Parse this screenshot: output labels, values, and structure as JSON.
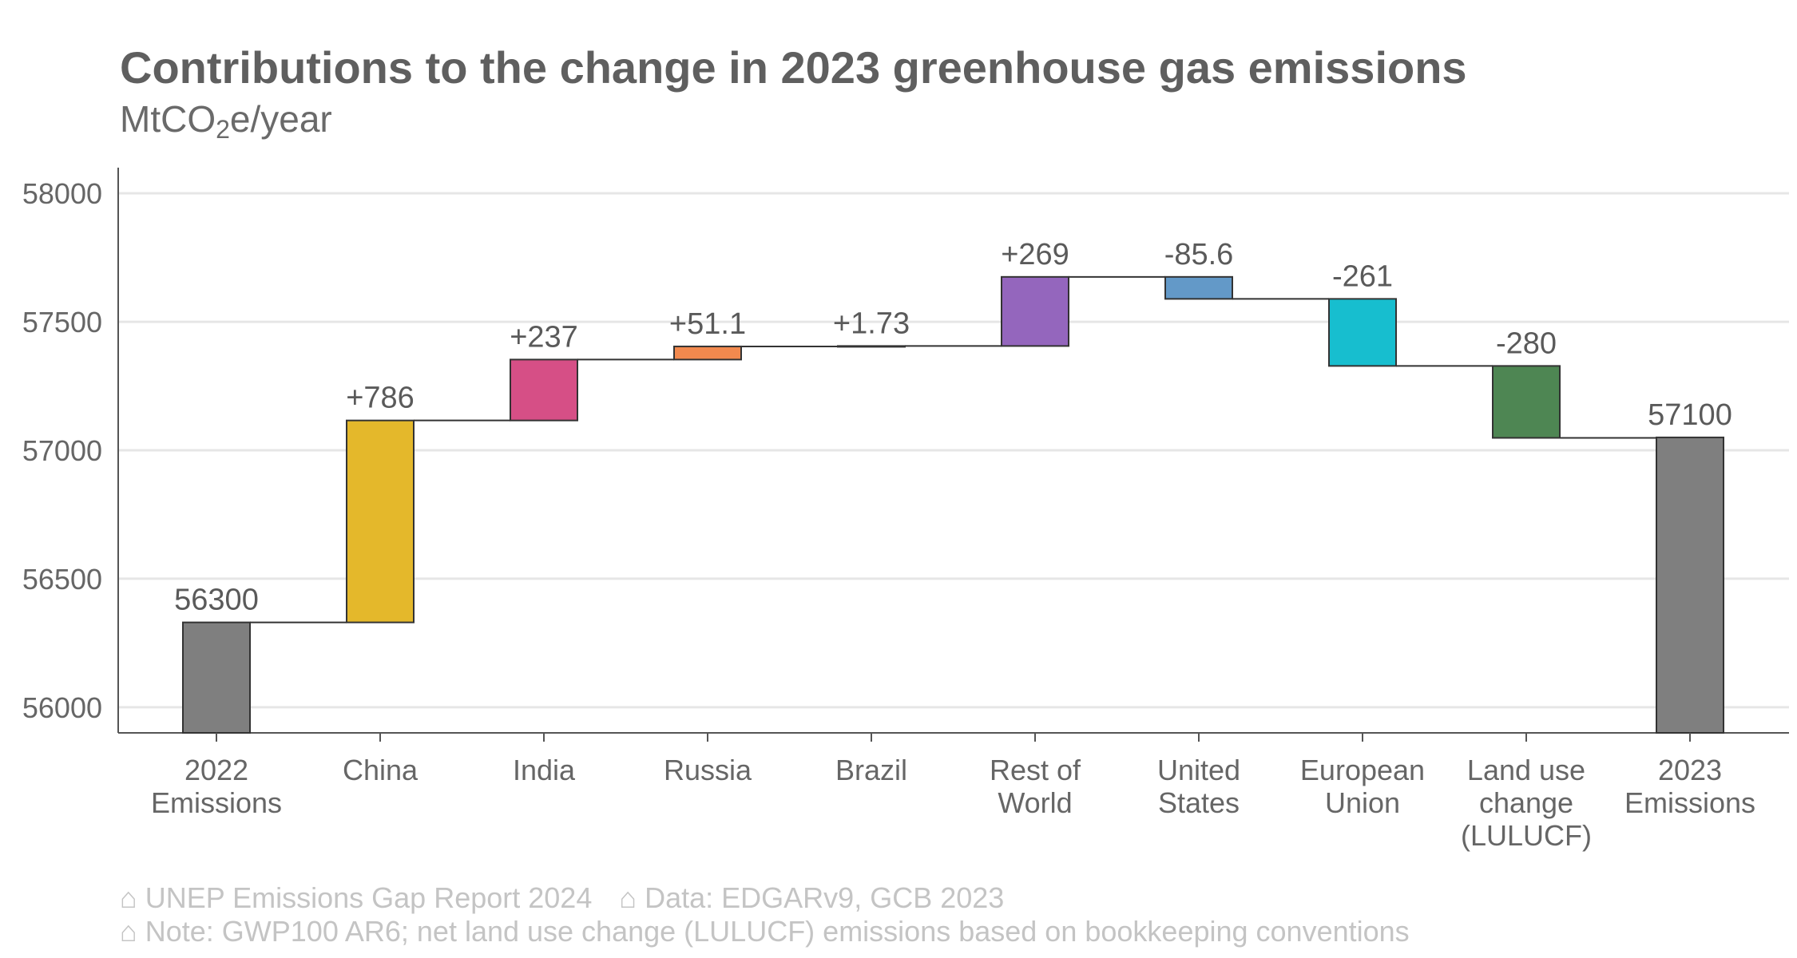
{
  "chart_data": {
    "type": "waterfall",
    "title": "Contributions to the change in 2023 greenhouse gas emissions",
    "subtitle": {
      "prefix": "MtCO",
      "sub": "2",
      "suffix": "e/year"
    },
    "ylim": [
      55900,
      58100
    ],
    "yticks": [
      56000,
      56500,
      57000,
      57500,
      58000
    ],
    "grid": true,
    "bars": [
      {
        "category": [
          "2022",
          "Emissions"
        ],
        "kind": "total",
        "value": 56330,
        "label": "56300",
        "color": "#7f7f7f"
      },
      {
        "category": [
          "China"
        ],
        "kind": "delta",
        "value": 786,
        "label": "+786",
        "color": "#e4b82b"
      },
      {
        "category": [
          "India"
        ],
        "kind": "delta",
        "value": 237,
        "label": "+237",
        "color": "#d64f86"
      },
      {
        "category": [
          "Russia"
        ],
        "kind": "delta",
        "value": 51.1,
        "label": "+51.1",
        "color": "#f2894e"
      },
      {
        "category": [
          "Brazil"
        ],
        "kind": "delta",
        "value": 1.73,
        "label": "+1.73",
        "color": "#9bc25a"
      },
      {
        "category": [
          "Rest of",
          "World"
        ],
        "kind": "delta",
        "value": 269,
        "label": "+269",
        "color": "#9466bd"
      },
      {
        "category": [
          "United",
          "States"
        ],
        "kind": "delta",
        "value": -85.6,
        "label": "-85.6",
        "color": "#6399c8"
      },
      {
        "category": [
          "European",
          "Union"
        ],
        "kind": "delta",
        "value": -261,
        "label": "-261",
        "color": "#17becf"
      },
      {
        "category": [
          "Land use",
          "change",
          "(LULUCF)"
        ],
        "kind": "delta",
        "value": -280,
        "label": "-280",
        "color": "#4e8653"
      },
      {
        "category": [
          "2023",
          "Emissions"
        ],
        "kind": "total",
        "value": 57050,
        "label": "57100",
        "color": "#7f7f7f"
      }
    ]
  },
  "caption": {
    "line1_a": "⌂ UNEP Emissions Gap Report 2024",
    "line1_b": "⌂ Data: EDGARv9, GCB 2023",
    "line2": "⌂ Note: GWP100 AR6; net land use change (LULUCF) emissions based on bookkeeping conventions"
  }
}
